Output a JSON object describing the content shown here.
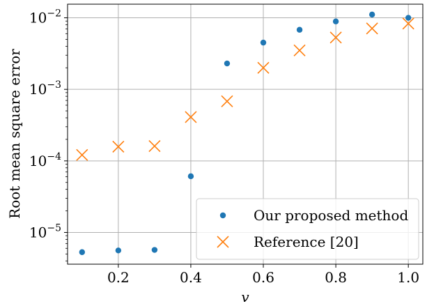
{
  "chart_data": {
    "type": "scatter",
    "title": "",
    "xlabel": "v",
    "ylabel": "Root mean square error",
    "xlim": [
      0.06,
      1.04
    ],
    "ylim": [
      3.6e-06,
      0.0155
    ],
    "yscale": "log",
    "grid": true,
    "legend_position": "bottom-right",
    "x_ticks": [
      0.2,
      0.4,
      0.6,
      0.8,
      1.0
    ],
    "x_tick_labels": [
      "0.2",
      "0.4",
      "0.6",
      "0.8",
      "1.0"
    ],
    "y_ticks": [
      1e-05,
      0.0001,
      0.001,
      0.01
    ],
    "y_tick_labels": [
      {
        "base": "10",
        "exp": "−5"
      },
      {
        "base": "10",
        "exp": "−4"
      },
      {
        "base": "10",
        "exp": "−3"
      },
      {
        "base": "10",
        "exp": "−2"
      }
    ],
    "series": [
      {
        "name": "Our proposed method",
        "marker": "dot",
        "color": "#1f77b4",
        "points": [
          {
            "x": 0.1,
            "y": 5.3e-06
          },
          {
            "x": 0.2,
            "y": 5.6e-06
          },
          {
            "x": 0.3,
            "y": 5.7e-06
          },
          {
            "x": 0.4,
            "y": 6.1e-05
          },
          {
            "x": 0.5,
            "y": 0.0023
          },
          {
            "x": 0.6,
            "y": 0.0045
          },
          {
            "x": 0.7,
            "y": 0.0068
          },
          {
            "x": 0.8,
            "y": 0.0089
          },
          {
            "x": 0.9,
            "y": 0.0111
          },
          {
            "x": 1.0,
            "y": 0.01
          }
        ]
      },
      {
        "name": "Reference [20]",
        "marker": "x",
        "color": "#ff7f0e",
        "points": [
          {
            "x": 0.1,
            "y": 0.000121
          },
          {
            "x": 0.2,
            "y": 0.000158
          },
          {
            "x": 0.3,
            "y": 0.000161
          },
          {
            "x": 0.4,
            "y": 0.00041
          },
          {
            "x": 0.5,
            "y": 0.00068
          },
          {
            "x": 0.6,
            "y": 0.002
          },
          {
            "x": 0.7,
            "y": 0.0035
          },
          {
            "x": 0.8,
            "y": 0.0053
          },
          {
            "x": 0.9,
            "y": 0.0071
          },
          {
            "x": 1.0,
            "y": 0.0083
          }
        ]
      }
    ]
  }
}
